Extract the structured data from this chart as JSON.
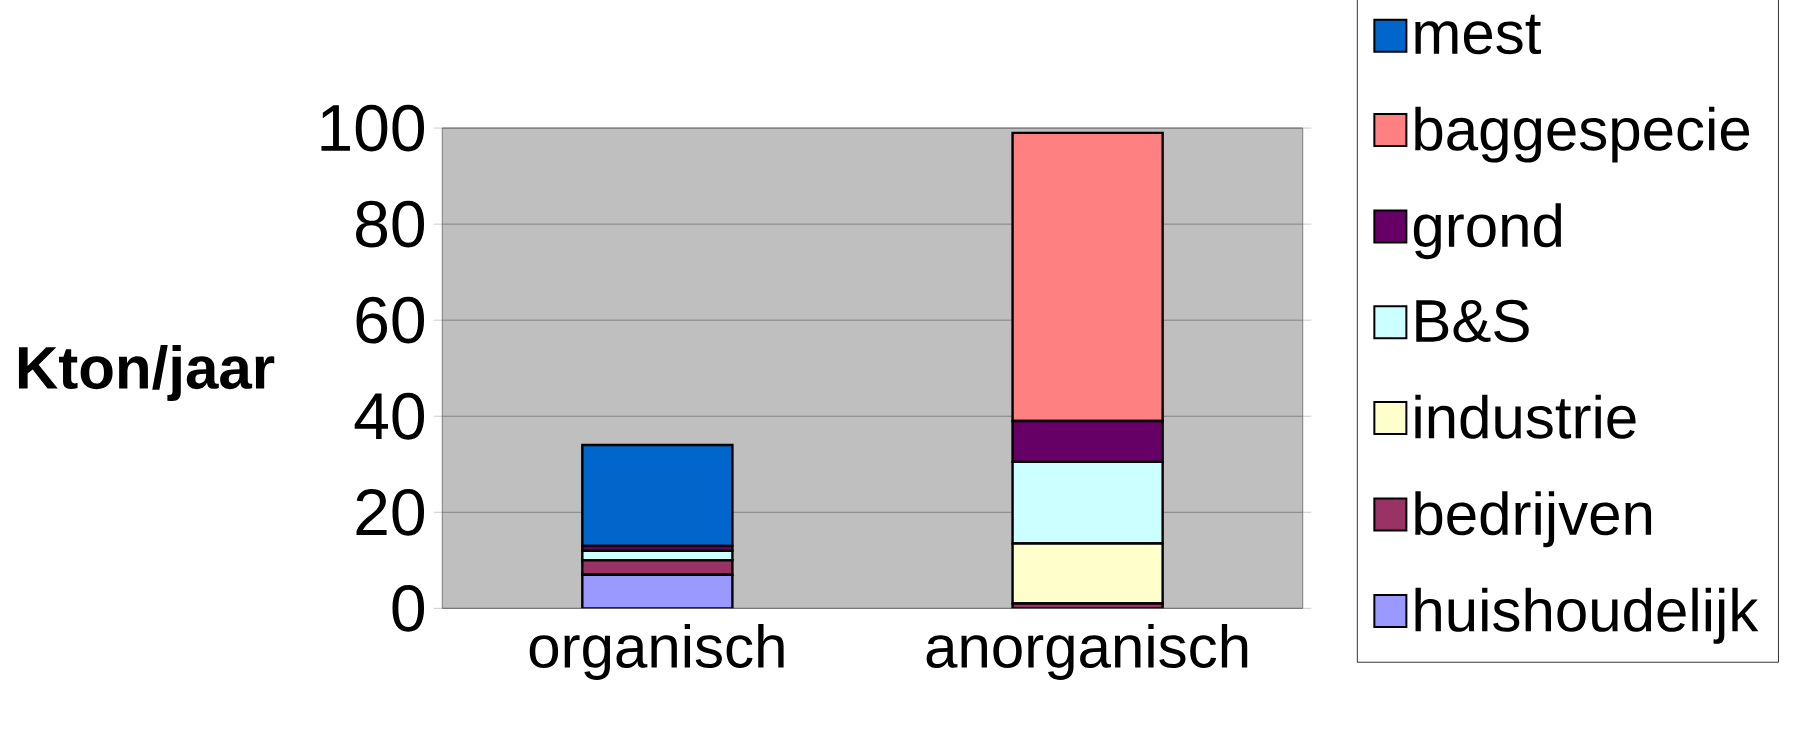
{
  "chart_data": {
    "type": "bar",
    "stacked": true,
    "ylabel": "Kton/jaar",
    "categories": [
      "organisch",
      "anorganisch"
    ],
    "series": [
      {
        "name": "huishoudelijk",
        "color": "#9999ff",
        "values": [
          7,
          0
        ]
      },
      {
        "name": "bedrijven",
        "color": "#993366",
        "values": [
          3,
          1
        ]
      },
      {
        "name": "industrie",
        "color": "#ffffcc",
        "values": [
          null,
          12.5
        ]
      },
      {
        "name": "B&S",
        "color": "#ccffff",
        "values": [
          2,
          17
        ]
      },
      {
        "name": "grond",
        "color": "#660066",
        "values": [
          1,
          8.5
        ]
      },
      {
        "name": "baggespecie",
        "color": "#ff8080",
        "values": [
          0,
          60
        ]
      },
      {
        "name": "mest",
        "color": "#0066cc",
        "values": [
          21,
          0
        ]
      }
    ],
    "ylim": [
      0,
      100
    ],
    "yticks": [
      0,
      20,
      40,
      60,
      80,
      100
    ],
    "grid": "y",
    "legend": "right"
  }
}
